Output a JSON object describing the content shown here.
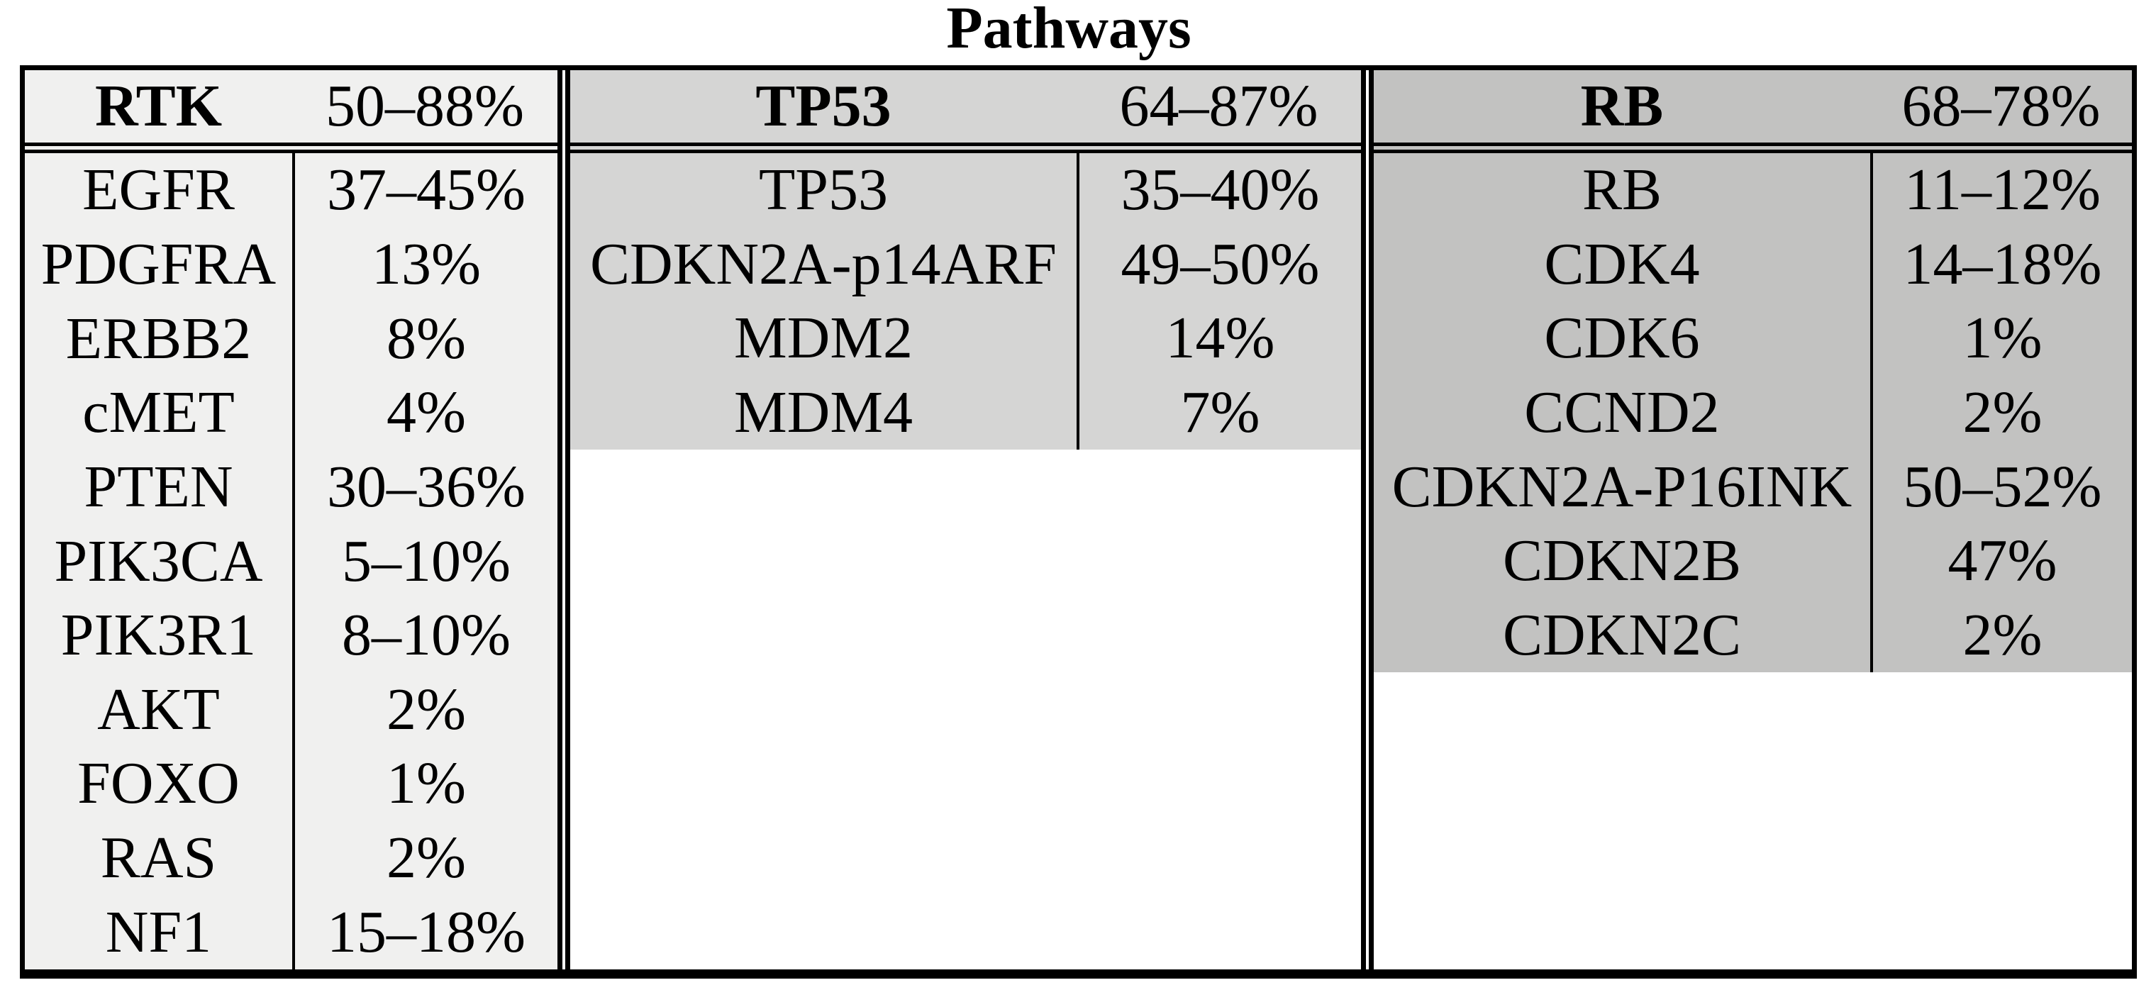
{
  "title": "Pathways",
  "colors": {
    "rtk_bg": "#f0f0ef",
    "tp53_bg": "#d5d5d4",
    "rb_bg": "#c2c2c1",
    "border": "#000000",
    "filler_bg": "#ffffff",
    "text": "#000000"
  },
  "chart_data": {
    "type": "table",
    "title": "Pathways",
    "groups": [
      {
        "name": "RTK",
        "range": "50–88%",
        "rows": [
          {
            "gene": "EGFR",
            "pct": "37–45%"
          },
          {
            "gene": "PDGFRA",
            "pct": "13%"
          },
          {
            "gene": "ERBB2",
            "pct": "8%"
          },
          {
            "gene": "cMET",
            "pct": "4%"
          },
          {
            "gene": "PTEN",
            "pct": "30–36%"
          },
          {
            "gene": "PIK3CA",
            "pct": "5–10%"
          },
          {
            "gene": "PIK3R1",
            "pct": "8–10%"
          },
          {
            "gene": "AKT",
            "pct": "2%"
          },
          {
            "gene": "FOXO",
            "pct": "1%"
          },
          {
            "gene": "RAS",
            "pct": "2%"
          },
          {
            "gene": "NF1",
            "pct": "15–18%"
          }
        ]
      },
      {
        "name": "TP53",
        "range": "64–87%",
        "rows": [
          {
            "gene": "TP53",
            "pct": "35–40%"
          },
          {
            "gene": "CDKN2A-p14ARF",
            "pct": "49–50%"
          },
          {
            "gene": "MDM2",
            "pct": "14%"
          },
          {
            "gene": "MDM4",
            "pct": "7%"
          }
        ]
      },
      {
        "name": "RB",
        "range": "68–78%",
        "rows": [
          {
            "gene": "RB",
            "pct": "11–12%"
          },
          {
            "gene": "CDK4",
            "pct": "14–18%"
          },
          {
            "gene": "CDK6",
            "pct": "1%"
          },
          {
            "gene": "CCND2",
            "pct": "2%"
          },
          {
            "gene": "CDKN2A-P16INK",
            "pct": "50–52%"
          },
          {
            "gene": "CDKN2B",
            "pct": "47%"
          },
          {
            "gene": "CDKN2C",
            "pct": "2%"
          }
        ]
      }
    ]
  }
}
